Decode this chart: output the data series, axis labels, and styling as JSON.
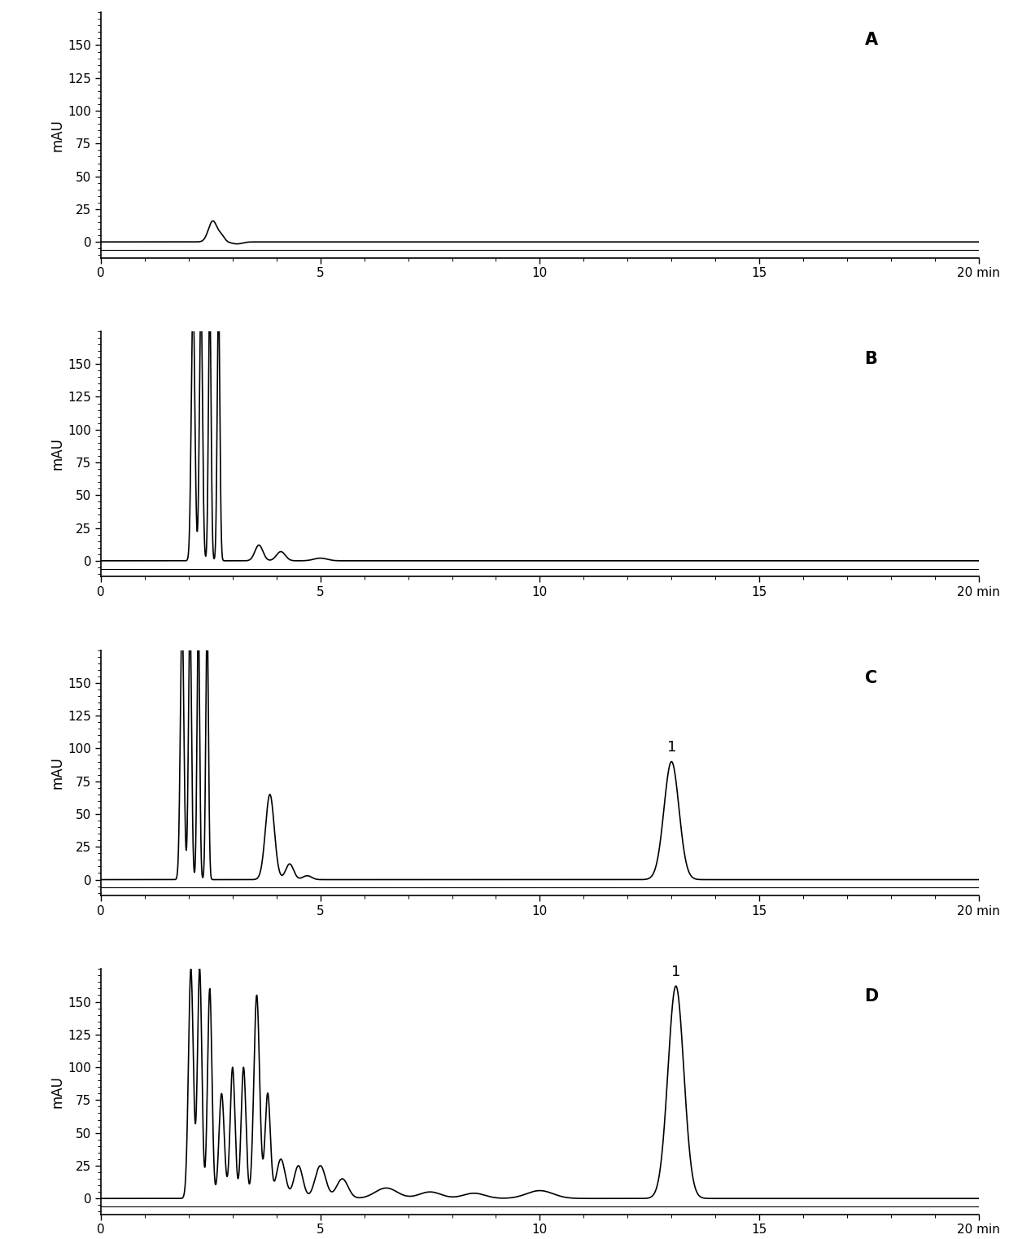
{
  "panels": [
    "A",
    "B",
    "C",
    "D"
  ],
  "ylim": [
    -12,
    175
  ],
  "xlim": [
    0,
    20
  ],
  "yticks": [
    0,
    25,
    50,
    75,
    100,
    125,
    150
  ],
  "xticks": [
    0,
    5,
    10,
    15,
    20
  ],
  "ylabel": "mAU",
  "xlabel_unit": "min",
  "line_color": "#000000",
  "line_width": 1.2,
  "bg_color": "#ffffff",
  "panel_label_fontsize": 15,
  "axis_fontsize": 12,
  "tick_fontsize": 11,
  "peak1_label_fontsize": 13
}
